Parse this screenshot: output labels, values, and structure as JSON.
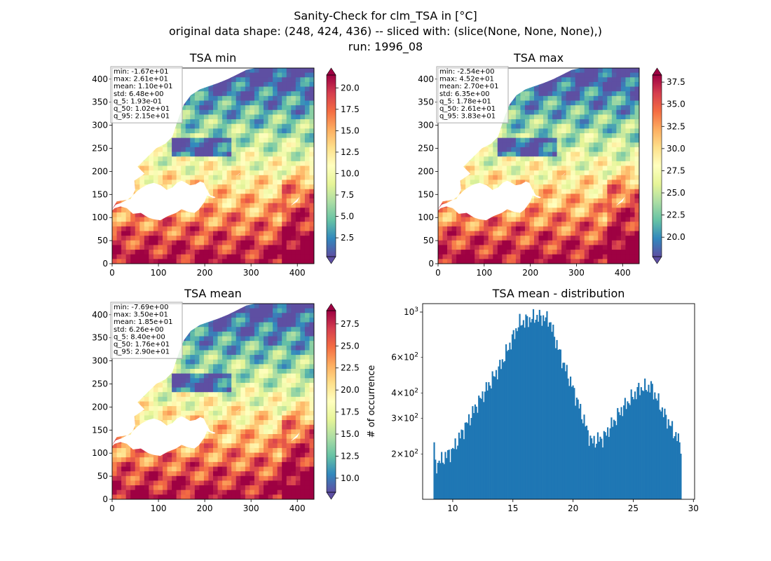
{
  "figure": {
    "title_lines": [
      "Sanity-Check for clm_TSA in [°C]",
      "original data shape: (248, 424, 436) -- sliced with: (slice(None, None, None),)",
      "run: 1996_08"
    ]
  },
  "chart_data": [
    {
      "type": "heatmap",
      "title": "TSA min",
      "colormap": "Spectral_r",
      "xlim": [
        0,
        436
      ],
      "ylim": [
        0,
        424
      ],
      "xticks": [
        0,
        100,
        200,
        300,
        400
      ],
      "yticks": [
        0,
        50,
        100,
        150,
        200,
        250,
        300,
        350,
        400
      ],
      "colorbar": {
        "min": 0.3,
        "max": 21.5,
        "ticks": [
          2.5,
          5.0,
          7.5,
          10.0,
          12.5,
          15.0,
          17.5,
          20.0
        ],
        "extend": "both"
      },
      "stats": [
        "min: -1.67e+01",
        "max: 2.61e+01",
        "mean: 1.10e+01",
        "std: 6.48e+00",
        "q_5: 1.93e-01",
        "q_50: 1.02e+01",
        "q_95: 2.15e+01"
      ]
    },
    {
      "type": "heatmap",
      "title": "TSA max",
      "colormap": "Spectral_r",
      "xlim": [
        0,
        436
      ],
      "ylim": [
        0,
        424
      ],
      "xticks": [
        0,
        100,
        200,
        300,
        400
      ],
      "yticks": [
        0,
        50,
        100,
        150,
        200,
        250,
        300,
        350,
        400
      ],
      "colorbar": {
        "min": 17.8,
        "max": 38.3,
        "ticks": [
          20.0,
          22.5,
          25.0,
          27.5,
          30.0,
          32.5,
          35.0,
          37.5
        ],
        "extend": "both"
      },
      "stats": [
        "min: -2.54e+00",
        "max: 4.52e+01",
        "mean: 2.70e+01",
        "std: 6.35e+00",
        "q_5: 1.78e+01",
        "q_50: 2.61e+01",
        "q_95: 3.83e+01"
      ]
    },
    {
      "type": "heatmap",
      "title": "TSA mean",
      "colormap": "Spectral_r",
      "xlim": [
        0,
        436
      ],
      "ylim": [
        0,
        424
      ],
      "xticks": [
        0,
        100,
        200,
        300,
        400
      ],
      "yticks": [
        0,
        50,
        100,
        150,
        200,
        250,
        300,
        350,
        400
      ],
      "colorbar": {
        "min": 8.4,
        "max": 29.0,
        "ticks": [
          10.0,
          12.5,
          15.0,
          17.5,
          20.0,
          22.5,
          25.0,
          27.5
        ],
        "extend": "both"
      },
      "stats": [
        "min: -7.69e+00",
        "max: 3.50e+01",
        "mean: 1.85e+01",
        "std: 6.26e+00",
        "q_5: 8.40e+00",
        "q_50: 1.76e+01",
        "q_95: 2.90e+01"
      ]
    },
    {
      "type": "bar",
      "title": "TSA mean - distribution",
      "xlabel": "",
      "ylabel": "# of occurrence",
      "yscale": "log",
      "xlim": [
        7.5,
        30.1
      ],
      "ylim": [
        120,
        1100
      ],
      "xticks": [
        10,
        15,
        20,
        25,
        30
      ],
      "yticks_major": [
        {
          "value": 1000,
          "label": "10^3"
        }
      ],
      "yticks_minor": [
        {
          "value": 200,
          "label": "2×10^2"
        },
        {
          "value": 300,
          "label": "3×10^2"
        },
        {
          "value": 400,
          "label": "4×10^2"
        },
        {
          "value": 600,
          "label": "6×10^2"
        }
      ],
      "bar_color": "#1f77b4",
      "bin_range": [
        8.4,
        29.0
      ],
      "approx_peaks": [
        {
          "x": 8.5,
          "count": 175
        },
        {
          "x": 10.0,
          "count": 210
        },
        {
          "x": 12.0,
          "count": 350
        },
        {
          "x": 14.0,
          "count": 550
        },
        {
          "x": 15.5,
          "count": 880
        },
        {
          "x": 17.0,
          "count": 950
        },
        {
          "x": 18.0,
          "count": 920
        },
        {
          "x": 19.0,
          "count": 600
        },
        {
          "x": 20.0,
          "count": 420
        },
        {
          "x": 21.5,
          "count": 230
        },
        {
          "x": 22.5,
          "count": 240
        },
        {
          "x": 24.0,
          "count": 330
        },
        {
          "x": 25.5,
          "count": 420
        },
        {
          "x": 26.5,
          "count": 430
        },
        {
          "x": 27.5,
          "count": 320
        },
        {
          "x": 29.0,
          "count": 220
        }
      ]
    }
  ]
}
